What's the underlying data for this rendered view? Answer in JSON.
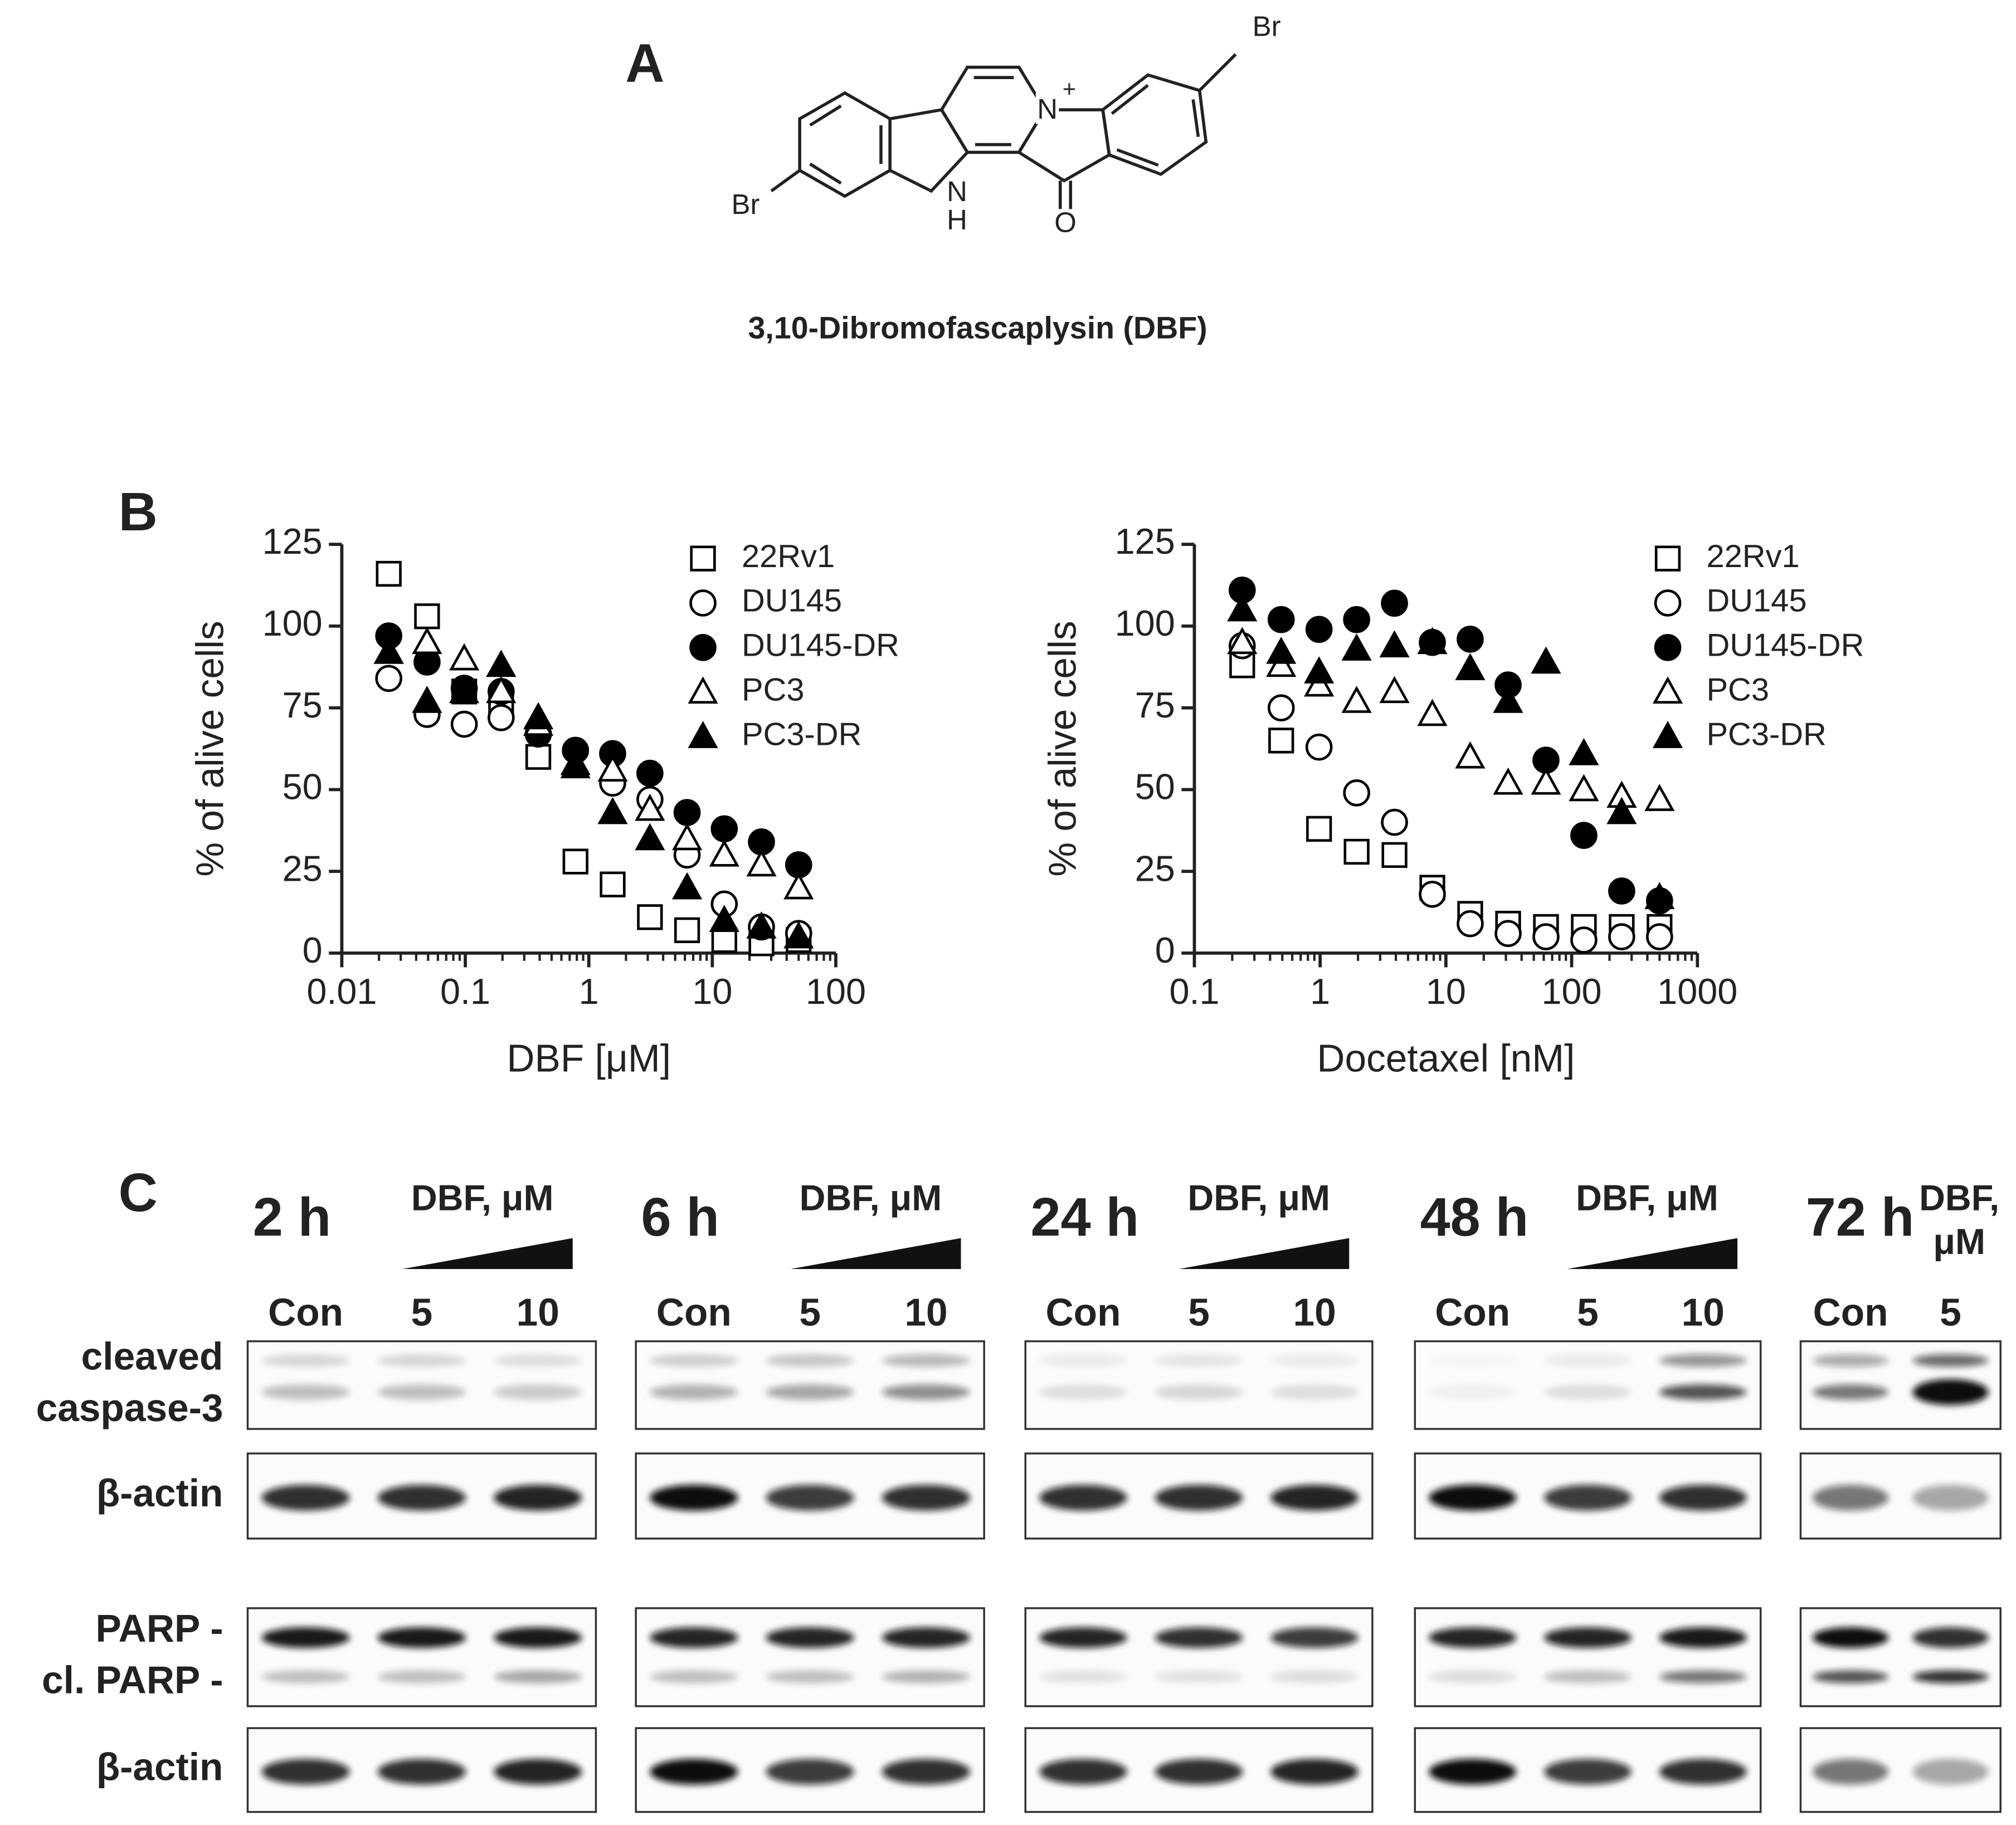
{
  "panel_a": {
    "label": "A",
    "atoms": {
      "br_left": "Br",
      "br_right": "Br",
      "n_plus": "N",
      "charge": "+",
      "nh_n": "N",
      "nh_h": "H",
      "o": "O"
    },
    "caption": "3,10-Dibromofascaplysin (DBF)"
  },
  "panel_b": {
    "label": "B"
  },
  "chart_data": [
    {
      "type": "scatter",
      "x_label": "DBF [μM]",
      "y_label": "% of alive cells",
      "log_x": true,
      "x": [
        0.024,
        0.049,
        0.098,
        0.195,
        0.39,
        0.78,
        1.56,
        3.125,
        6.25,
        12.5,
        25,
        50
      ],
      "xlim": [
        0.01,
        100
      ],
      "xticks": [
        0.01,
        0.1,
        1,
        10,
        100
      ],
      "ylim": [
        0,
        125
      ],
      "yticks": [
        0,
        25,
        50,
        75,
        100,
        125
      ],
      "series": [
        {
          "name": "22Rv1",
          "marker": "square",
          "filled": false,
          "color": "#000000",
          "values": [
            116,
            103,
            80,
            77,
            60,
            28,
            21,
            11,
            7,
            4,
            3,
            4
          ]
        },
        {
          "name": "DU145",
          "marker": "circle",
          "filled": false,
          "color": "#000000",
          "values": [
            84,
            73,
            70,
            72,
            67,
            62,
            52,
            47,
            30,
            15,
            8,
            6
          ]
        },
        {
          "name": "DU145-DR",
          "marker": "circle",
          "filled": true,
          "color": "#000000",
          "values": [
            97,
            89,
            81,
            80,
            67,
            62,
            61,
            55,
            43,
            38,
            34,
            27
          ]
        },
        {
          "name": "PC3",
          "marker": "triangle",
          "filled": false,
          "color": "#000000",
          "values": [
            92,
            95,
            90,
            80,
            70,
            58,
            56,
            44,
            35,
            30,
            27,
            20
          ]
        },
        {
          "name": "PC3-DR",
          "marker": "triangle",
          "filled": true,
          "color": "#000000",
          "values": [
            92,
            77,
            80,
            88,
            72,
            57,
            43,
            35,
            20,
            10,
            8,
            5
          ]
        }
      ]
    },
    {
      "type": "scatter",
      "x_label": "Docetaxel [nM]",
      "y_label": "% of alive cells",
      "log_x": true,
      "x": [
        0.24,
        0.49,
        0.98,
        1.95,
        3.9,
        7.8,
        15.6,
        31.25,
        62.5,
        125,
        250,
        500
      ],
      "xlim": [
        0.1,
        1000
      ],
      "xticks": [
        0.1,
        1,
        10,
        100,
        1000
      ],
      "ylim": [
        0,
        125
      ],
      "yticks": [
        0,
        25,
        50,
        75,
        100,
        125
      ],
      "series": [
        {
          "name": "22Rv1",
          "marker": "square",
          "filled": false,
          "color": "#000000",
          "values": [
            88,
            65,
            38,
            31,
            30,
            20,
            12,
            9,
            8,
            8,
            8,
            8
          ]
        },
        {
          "name": "DU145",
          "marker": "circle",
          "filled": false,
          "color": "#000000",
          "values": [
            94,
            75,
            63,
            49,
            40,
            18,
            9,
            6,
            5,
            4,
            5,
            5
          ]
        },
        {
          "name": "DU145-DR",
          "marker": "circle",
          "filled": true,
          "color": "#000000",
          "values": [
            111,
            102,
            99,
            102,
            107,
            95,
            96,
            82,
            59,
            36,
            19,
            16
          ]
        },
        {
          "name": "PC3",
          "marker": "triangle",
          "filled": false,
          "color": "#000000",
          "values": [
            95,
            88,
            82,
            77,
            80,
            73,
            60,
            52,
            52,
            50,
            48,
            47
          ]
        },
        {
          "name": "PC3-DR",
          "marker": "triangle",
          "filled": true,
          "color": "#000000",
          "values": [
            105,
            92,
            86,
            93,
            94,
            95,
            87,
            77,
            89,
            61,
            43,
            17
          ]
        }
      ]
    }
  ],
  "panel_c": {
    "label": "C",
    "groups": [
      {
        "time": "2 h",
        "treatment": [
          "DBF, μM"
        ],
        "lanes": [
          "Con",
          "5",
          "10"
        ]
      },
      {
        "time": "6 h",
        "treatment": [
          "DBF, μM"
        ],
        "lanes": [
          "Con",
          "5",
          "10"
        ]
      },
      {
        "time": "24 h",
        "treatment": [
          "DBF, μM"
        ],
        "lanes": [
          "Con",
          "5",
          "10"
        ]
      },
      {
        "time": "48 h",
        "treatment": [
          "DBF, μM"
        ],
        "lanes": [
          "Con",
          "5",
          "10"
        ]
      },
      {
        "time": "72 h",
        "treatment": [
          "DBF,",
          "μM"
        ],
        "lanes": [
          "Con",
          "5"
        ]
      }
    ],
    "rows": [
      [
        "cleaved",
        "caspase-3"
      ],
      [
        "β-actin"
      ],
      [
        "PARP -",
        "cl. PARP -"
      ],
      [
        "β-actin"
      ]
    ]
  }
}
